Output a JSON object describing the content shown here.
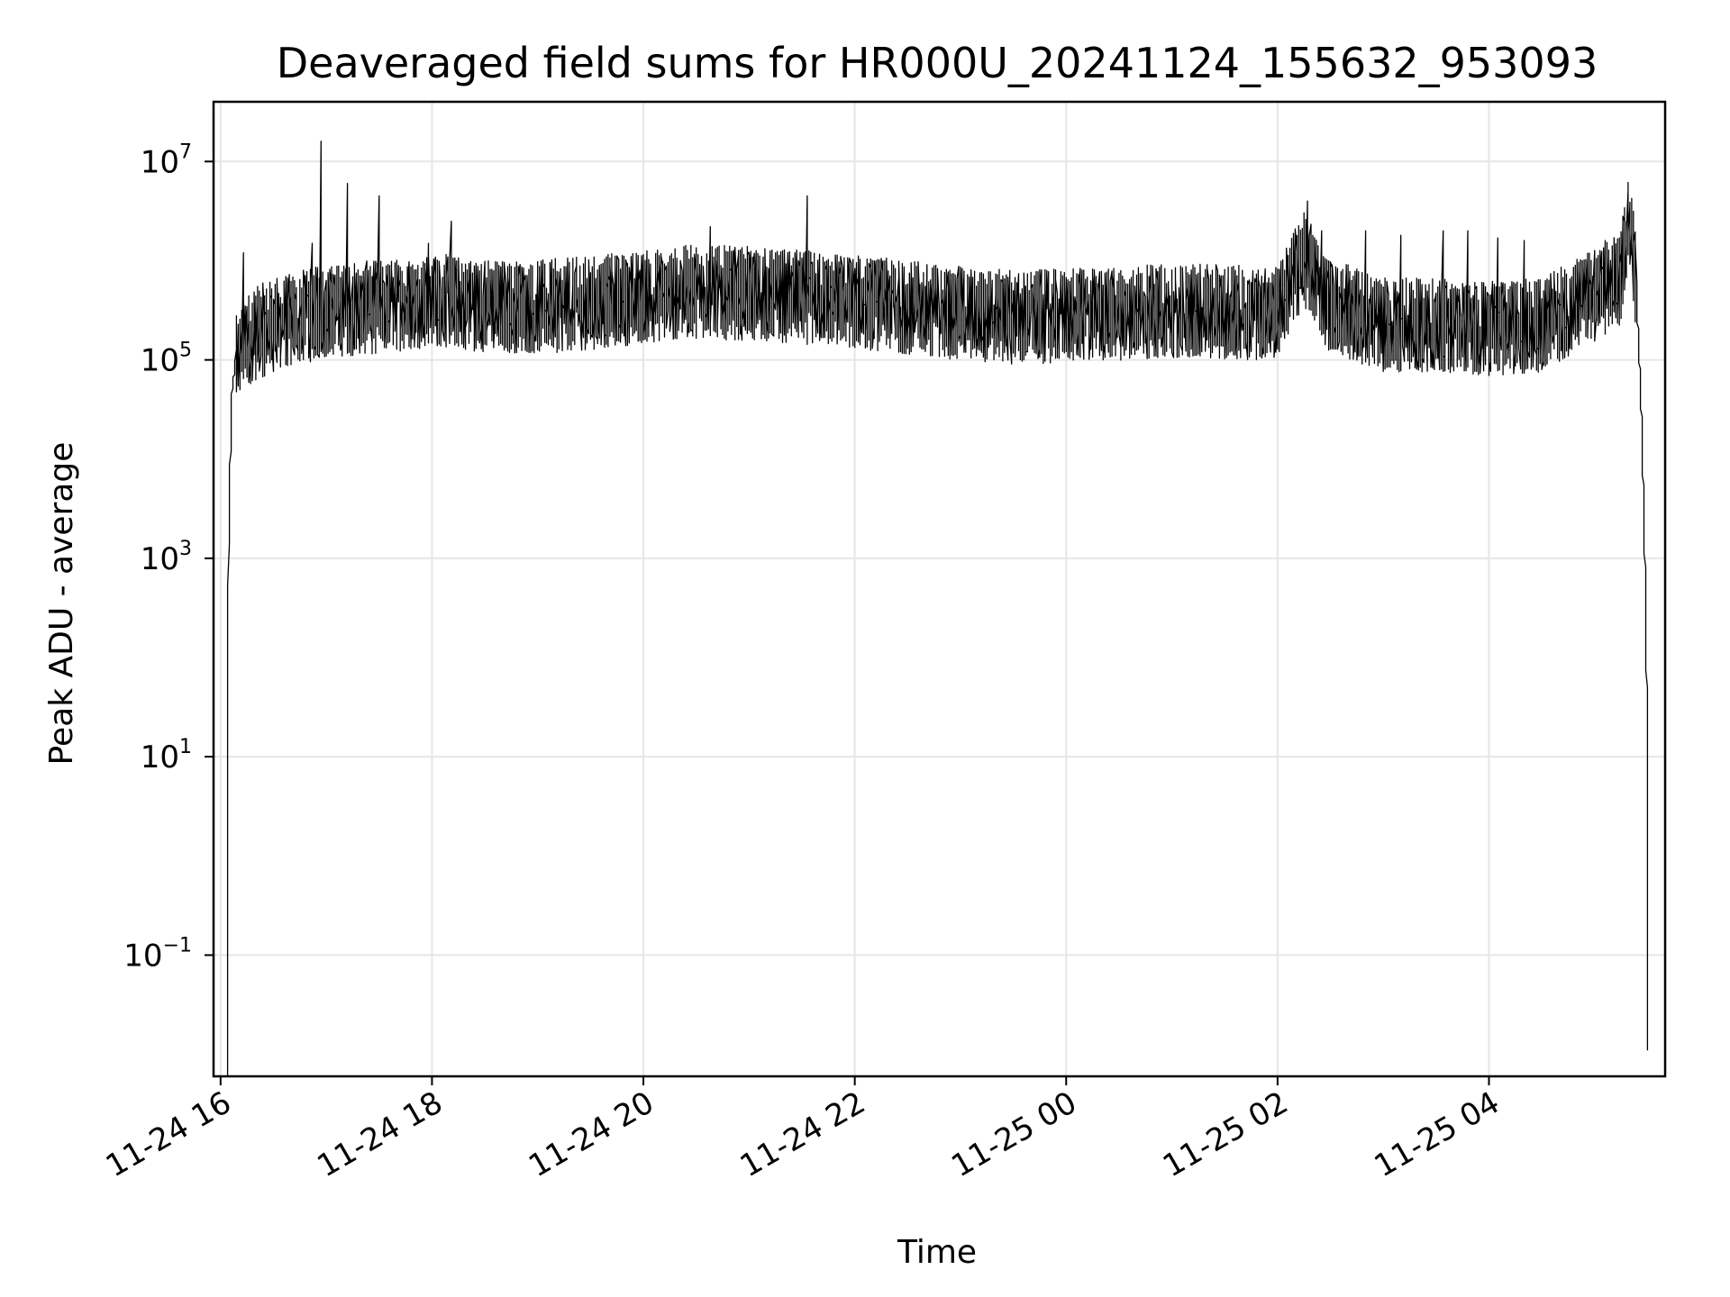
{
  "chart_data": {
    "type": "line",
    "title": "Deaveraged field sums for HR000U_20241124_155632_953093",
    "xlabel": "Time",
    "ylabel": "Peak ADU - average",
    "y_scale": "log",
    "grid": true,
    "line_color": "#000000",
    "grid_color": "#e6e6e6",
    "x_range": [
      "2024-11-24 15:56",
      "2024-11-25 05:40"
    ],
    "ylim": [
      0.006,
      40000000
    ],
    "x_ticks": [
      {
        "value": "2024-11-24 16:00",
        "label": "11-24 16"
      },
      {
        "value": "2024-11-24 18:00",
        "label": "11-24 18"
      },
      {
        "value": "2024-11-24 20:00",
        "label": "11-24 20"
      },
      {
        "value": "2024-11-24 22:00",
        "label": "11-24 22"
      },
      {
        "value": "2024-11-25 00:00",
        "label": "11-25 00"
      },
      {
        "value": "2024-11-25 02:00",
        "label": "11-25 02"
      },
      {
        "value": "2024-11-25 04:00",
        "label": "11-25 04"
      }
    ],
    "y_ticks": [
      {
        "value": 10000000,
        "base": "10",
        "exp": "7"
      },
      {
        "value": 100000,
        "base": "10",
        "exp": "5"
      },
      {
        "value": 1000,
        "base": "10",
        "exp": "3"
      },
      {
        "value": 10,
        "base": "10",
        "exp": "1"
      },
      {
        "value": 0.1,
        "base": "10",
        "exp": "−1"
      }
    ],
    "series": [
      {
        "values": [
          {
            "x": "2024-11-24 16:04",
            "y": 0.006
          },
          {
            "x": "2024-11-24 16:05",
            "y": 1200
          },
          {
            "x": "2024-11-24 16:06",
            "y": 12000
          },
          {
            "x": "2024-11-24 16:07",
            "y": 50000
          },
          {
            "x": "2024-11-24 16:09",
            "y": 100000
          },
          {
            "x": "2024-11-24 16:15",
            "y": 180000
          },
          {
            "x": "2024-11-24 16:30",
            "y": 250000
          },
          {
            "x": "2024-11-24 17:00",
            "y": 350000
          },
          {
            "x": "2024-11-24 17:30",
            "y": 380000
          },
          {
            "x": "2024-11-24 18:00",
            "y": 450000
          },
          {
            "x": "2024-11-24 18:30",
            "y": 400000
          },
          {
            "x": "2024-11-24 19:00",
            "y": 380000
          },
          {
            "x": "2024-11-24 19:30",
            "y": 420000
          },
          {
            "x": "2024-11-24 20:00",
            "y": 480000
          },
          {
            "x": "2024-11-24 20:30",
            "y": 550000
          },
          {
            "x": "2024-11-24 21:00",
            "y": 520000
          },
          {
            "x": "2024-11-24 21:30",
            "y": 480000
          },
          {
            "x": "2024-11-24 22:00",
            "y": 430000
          },
          {
            "x": "2024-11-24 22:30",
            "y": 380000
          },
          {
            "x": "2024-11-24 23:00",
            "y": 330000
          },
          {
            "x": "2024-11-24 23:30",
            "y": 300000
          },
          {
            "x": "2024-11-25 00:00",
            "y": 310000
          },
          {
            "x": "2024-11-25 00:30",
            "y": 330000
          },
          {
            "x": "2024-11-25 01:00",
            "y": 350000
          },
          {
            "x": "2024-11-25 01:30",
            "y": 340000
          },
          {
            "x": "2024-11-25 02:00",
            "y": 330000
          },
          {
            "x": "2024-11-25 02:15",
            "y": 1200000
          },
          {
            "x": "2024-11-25 02:30",
            "y": 400000
          },
          {
            "x": "2024-11-25 03:00",
            "y": 250000
          },
          {
            "x": "2024-11-25 03:30",
            "y": 250000
          },
          {
            "x": "2024-11-25 04:00",
            "y": 230000
          },
          {
            "x": "2024-11-25 04:30",
            "y": 250000
          },
          {
            "x": "2024-11-25 05:00",
            "y": 500000
          },
          {
            "x": "2024-11-25 05:15",
            "y": 700000
          },
          {
            "x": "2024-11-25 05:20",
            "y": 3500000
          },
          {
            "x": "2024-11-25 05:24",
            "y": 600000
          },
          {
            "x": "2024-11-25 05:27",
            "y": 30000
          },
          {
            "x": "2024-11-25 05:29",
            "y": 1000
          },
          {
            "x": "2024-11-25 05:30",
            "y": 50
          },
          {
            "x": "2024-11-25 05:31",
            "y": 0.006
          }
        ],
        "spikes": [
          {
            "x": "2024-11-24 16:13",
            "y": 1200000
          },
          {
            "x": "2024-11-24 16:52",
            "y": 1500000
          },
          {
            "x": "2024-11-24 16:57",
            "y": 16000000
          },
          {
            "x": "2024-11-24 17:12",
            "y": 6000000
          },
          {
            "x": "2024-11-24 17:30",
            "y": 4500000
          },
          {
            "x": "2024-11-24 17:58",
            "y": 1500000
          },
          {
            "x": "2024-11-24 18:11",
            "y": 2500000
          },
          {
            "x": "2024-11-24 20:38",
            "y": 2200000
          },
          {
            "x": "2024-11-24 21:33",
            "y": 4500000
          },
          {
            "x": "2024-11-25 02:17",
            "y": 4000000
          },
          {
            "x": "2024-11-25 02:25",
            "y": 2000000
          },
          {
            "x": "2024-11-25 02:50",
            "y": 2000000
          },
          {
            "x": "2024-11-25 03:10",
            "y": 1800000
          },
          {
            "x": "2024-11-25 03:34",
            "y": 2000000
          },
          {
            "x": "2024-11-25 03:48",
            "y": 2000000
          },
          {
            "x": "2024-11-25 04:05",
            "y": 1700000
          },
          {
            "x": "2024-11-25 04:20",
            "y": 1600000
          },
          {
            "x": "2024-11-25 05:06",
            "y": 1600000
          },
          {
            "x": "2024-11-25 05:20",
            "y": 3500000
          }
        ]
      }
    ]
  }
}
